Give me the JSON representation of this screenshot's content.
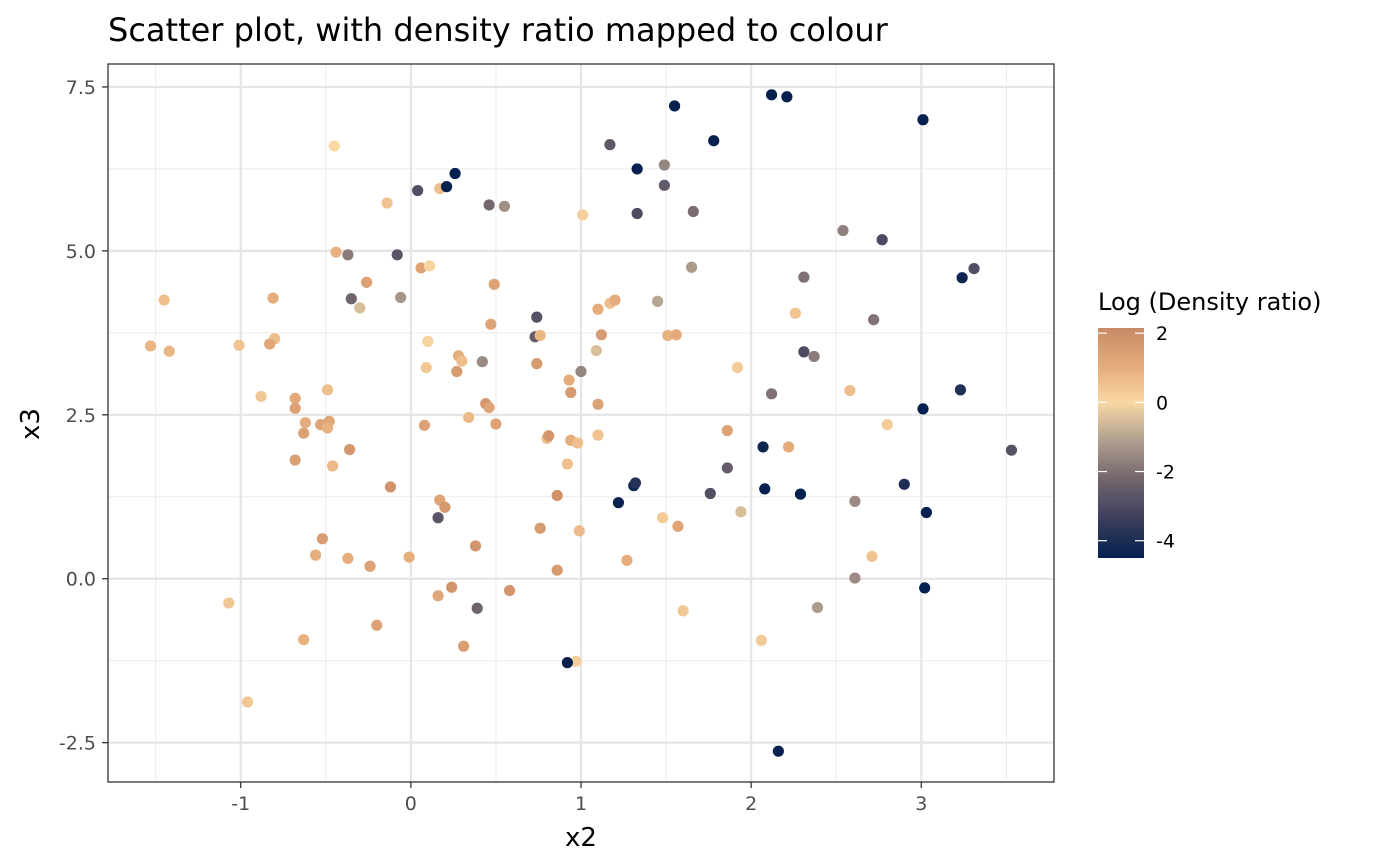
{
  "chart_data": {
    "type": "scatter",
    "title": "Scatter plot, with density ratio mapped to colour",
    "xlabel": "x2",
    "ylabel": "x3",
    "xlim": [
      -1.78,
      3.78
    ],
    "ylim": [
      -3.1,
      7.85
    ],
    "x_ticks": [
      -1,
      0,
      1,
      2,
      3
    ],
    "x_tick_labels": [
      "-1",
      "0",
      "1",
      "2",
      "3"
    ],
    "y_ticks": [
      -2.5,
      0.0,
      2.5,
      5.0,
      7.5
    ],
    "y_tick_labels": [
      "-2.5",
      "0.0",
      "2.5",
      "5.0",
      "7.5"
    ],
    "grid": true,
    "color_scale": {
      "title": "Log (Density ratio)",
      "min": -4.5,
      "max": 2.15,
      "ticks": [
        2,
        0,
        -2,
        -4
      ],
      "tick_labels": [
        "2",
        "0",
        "-2",
        "-4"
      ],
      "stops": [
        {
          "value": -4.5,
          "color": "#04204f"
        },
        {
          "value": -3.4,
          "color": "#3a3d5c"
        },
        {
          "value": -2.2,
          "color": "#74666e"
        },
        {
          "value": -1.0,
          "color": "#b6a591"
        },
        {
          "value": 0.0,
          "color": "#f9d8a4"
        },
        {
          "value": 1.0,
          "color": "#e6ad7c"
        },
        {
          "value": 2.15,
          "color": "#c98a66"
        }
      ],
      "legend_placement": "right"
    },
    "points": [
      {
        "x": -0.45,
        "y": 6.6,
        "c": 0.0
      },
      {
        "x": -1.45,
        "y": 4.25,
        "c": 0.6
      },
      {
        "x": -1.53,
        "y": 3.55,
        "c": 0.8
      },
      {
        "x": -1.42,
        "y": 3.47,
        "c": 0.8
      },
      {
        "x": -1.01,
        "y": 3.56,
        "c": 0.5
      },
      {
        "x": -0.81,
        "y": 4.28,
        "c": 1.0
      },
      {
        "x": -0.8,
        "y": 3.66,
        "c": 0.6
      },
      {
        "x": -0.83,
        "y": 3.58,
        "c": 1.2
      },
      {
        "x": -0.88,
        "y": 2.78,
        "c": 0.4
      },
      {
        "x": -0.68,
        "y": 2.75,
        "c": 1.2
      },
      {
        "x": -0.68,
        "y": 2.6,
        "c": 1.4
      },
      {
        "x": -0.62,
        "y": 2.38,
        "c": 1.0
      },
      {
        "x": -0.63,
        "y": 2.22,
        "c": 1.4
      },
      {
        "x": -0.53,
        "y": 2.35,
        "c": 1.3
      },
      {
        "x": -0.48,
        "y": 2.4,
        "c": 1.2
      },
      {
        "x": -0.49,
        "y": 2.3,
        "c": 0.9
      },
      {
        "x": -0.49,
        "y": 2.88,
        "c": 0.6
      },
      {
        "x": -0.46,
        "y": 1.72,
        "c": 0.7
      },
      {
        "x": -0.68,
        "y": 1.81,
        "c": 1.5
      },
      {
        "x": -0.36,
        "y": 1.97,
        "c": 1.7
      },
      {
        "x": -0.44,
        "y": 4.98,
        "c": 0.9
      },
      {
        "x": -0.37,
        "y": 4.94,
        "c": -1.8
      },
      {
        "x": -0.35,
        "y": 4.27,
        "c": -2.3
      },
      {
        "x": -0.3,
        "y": 4.13,
        "c": -0.5
      },
      {
        "x": -0.26,
        "y": 4.52,
        "c": 1.4
      },
      {
        "x": -0.14,
        "y": 5.73,
        "c": 0.5
      },
      {
        "x": -0.08,
        "y": 4.94,
        "c": -2.7
      },
      {
        "x": -0.06,
        "y": 4.29,
        "c": -1.3
      },
      {
        "x": 0.04,
        "y": 5.92,
        "c": -2.9
      },
      {
        "x": 0.06,
        "y": 4.74,
        "c": 1.3
      },
      {
        "x": 0.11,
        "y": 4.77,
        "c": 0.1
      },
      {
        "x": 0.1,
        "y": 3.62,
        "c": 0.1
      },
      {
        "x": 0.09,
        "y": 3.22,
        "c": 0.4
      },
      {
        "x": 0.08,
        "y": 2.34,
        "c": 1.4
      },
      {
        "x": -0.12,
        "y": 1.4,
        "c": 1.9
      },
      {
        "x": -0.52,
        "y": 0.61,
        "c": 1.5
      },
      {
        "x": -0.56,
        "y": 0.36,
        "c": 1.0
      },
      {
        "x": -0.37,
        "y": 0.31,
        "c": 1.0
      },
      {
        "x": -0.24,
        "y": 0.19,
        "c": 1.4
      },
      {
        "x": -0.01,
        "y": 0.33,
        "c": 1.0
      },
      {
        "x": -0.63,
        "y": -0.93,
        "c": 0.9
      },
      {
        "x": -0.2,
        "y": -0.71,
        "c": 1.4
      },
      {
        "x": -1.07,
        "y": -0.37,
        "c": 0.4
      },
      {
        "x": -0.96,
        "y": -1.88,
        "c": 0.4
      },
      {
        "x": 0.17,
        "y": 5.95,
        "c": 0.6
      },
      {
        "x": 0.21,
        "y": 5.98,
        "c": -4.4
      },
      {
        "x": 0.26,
        "y": 6.18,
        "c": -4.5
      },
      {
        "x": 0.28,
        "y": 3.4,
        "c": 1.0
      },
      {
        "x": 0.3,
        "y": 3.32,
        "c": 0.6
      },
      {
        "x": 0.27,
        "y": 3.16,
        "c": 1.6
      },
      {
        "x": 0.34,
        "y": 2.46,
        "c": 0.7
      },
      {
        "x": 0.16,
        "y": 0.93,
        "c": -2.7
      },
      {
        "x": 0.17,
        "y": 1.2,
        "c": 1.3
      },
      {
        "x": 0.2,
        "y": 1.09,
        "c": 1.7
      },
      {
        "x": 0.16,
        "y": -0.26,
        "c": 1.2
      },
      {
        "x": 0.24,
        "y": -0.13,
        "c": 1.8
      },
      {
        "x": 0.31,
        "y": -1.03,
        "c": 1.5
      },
      {
        "x": 0.39,
        "y": -0.45,
        "c": -2.3
      },
      {
        "x": 0.38,
        "y": 0.5,
        "c": 1.8
      },
      {
        "x": 0.42,
        "y": 3.31,
        "c": -1.5
      },
      {
        "x": 0.44,
        "y": 2.67,
        "c": 1.7
      },
      {
        "x": 0.46,
        "y": 2.61,
        "c": 1.3
      },
      {
        "x": 0.47,
        "y": 3.88,
        "c": 1.3
      },
      {
        "x": 0.49,
        "y": 4.49,
        "c": 1.4
      },
      {
        "x": 0.46,
        "y": 5.7,
        "c": -2.2
      },
      {
        "x": 0.55,
        "y": 5.68,
        "c": -1.4
      },
      {
        "x": 0.5,
        "y": 2.36,
        "c": 1.4
      },
      {
        "x": 0.58,
        "y": -0.18,
        "c": 1.8
      },
      {
        "x": 0.74,
        "y": 3.99,
        "c": -2.8
      },
      {
        "x": 0.73,
        "y": 3.69,
        "c": -2.5
      },
      {
        "x": 0.76,
        "y": 3.71,
        "c": 0.8
      },
      {
        "x": 0.74,
        "y": 3.28,
        "c": 1.6
      },
      {
        "x": 0.8,
        "y": 2.14,
        "c": 0.6
      },
      {
        "x": 0.81,
        "y": 2.18,
        "c": 1.8
      },
      {
        "x": 0.76,
        "y": 0.77,
        "c": 1.6
      },
      {
        "x": 0.86,
        "y": 1.27,
        "c": 1.9
      },
      {
        "x": 0.86,
        "y": 0.13,
        "c": 1.6
      },
      {
        "x": 0.93,
        "y": 3.03,
        "c": 1.0
      },
      {
        "x": 0.94,
        "y": 2.84,
        "c": 1.6
      },
      {
        "x": 0.94,
        "y": 2.11,
        "c": 1.0
      },
      {
        "x": 0.92,
        "y": 1.75,
        "c": 0.6
      },
      {
        "x": 0.97,
        "y": -1.26,
        "c": 0.2
      },
      {
        "x": 0.92,
        "y": -1.28,
        "c": -4.5
      },
      {
        "x": 0.98,
        "y": 2.07,
        "c": 0.6
      },
      {
        "x": 0.99,
        "y": 0.73,
        "c": 0.7
      },
      {
        "x": 1.0,
        "y": 3.16,
        "c": -1.6
      },
      {
        "x": 1.01,
        "y": 5.55,
        "c": 0.2
      },
      {
        "x": 1.09,
        "y": 3.48,
        "c": -0.5
      },
      {
        "x": 1.1,
        "y": 4.11,
        "c": 1.0
      },
      {
        "x": 1.12,
        "y": 3.72,
        "c": 1.6
      },
      {
        "x": 1.17,
        "y": 4.2,
        "c": 0.6
      },
      {
        "x": 1.2,
        "y": 4.25,
        "c": 1.0
      },
      {
        "x": 1.1,
        "y": 2.66,
        "c": 1.4
      },
      {
        "x": 1.1,
        "y": 2.19,
        "c": 0.5
      },
      {
        "x": 1.17,
        "y": 6.62,
        "c": -2.6
      },
      {
        "x": 1.22,
        "y": 1.16,
        "c": -4.4
      },
      {
        "x": 1.27,
        "y": 0.28,
        "c": 1.0
      },
      {
        "x": 1.31,
        "y": 1.42,
        "c": -4.3
      },
      {
        "x": 1.32,
        "y": 1.46,
        "c": -3.8
      },
      {
        "x": 1.33,
        "y": 6.25,
        "c": -4.5
      },
      {
        "x": 1.33,
        "y": 5.57,
        "c": -3.0
      },
      {
        "x": 1.45,
        "y": 4.23,
        "c": -1.0
      },
      {
        "x": 1.49,
        "y": 6.31,
        "c": -1.6
      },
      {
        "x": 1.49,
        "y": 6.0,
        "c": -2.6
      },
      {
        "x": 1.51,
        "y": 3.71,
        "c": 0.9
      },
      {
        "x": 1.56,
        "y": 3.72,
        "c": 1.1
      },
      {
        "x": 1.48,
        "y": 0.93,
        "c": 0.3
      },
      {
        "x": 1.57,
        "y": 0.8,
        "c": 1.3
      },
      {
        "x": 1.6,
        "y": -0.49,
        "c": 0.4
      },
      {
        "x": 1.55,
        "y": 7.21,
        "c": -4.5
      },
      {
        "x": 1.66,
        "y": 5.6,
        "c": -2.1
      },
      {
        "x": 1.65,
        "y": 4.75,
        "c": -1.2
      },
      {
        "x": 1.78,
        "y": 6.68,
        "c": -4.5
      },
      {
        "x": 1.76,
        "y": 1.3,
        "c": -2.9
      },
      {
        "x": 1.86,
        "y": 2.26,
        "c": 1.4
      },
      {
        "x": 1.86,
        "y": 1.69,
        "c": -2.5
      },
      {
        "x": 1.92,
        "y": 3.22,
        "c": 0.3
      },
      {
        "x": 1.94,
        "y": 1.02,
        "c": -0.5
      },
      {
        "x": 2.06,
        "y": -0.94,
        "c": 0.3
      },
      {
        "x": 2.07,
        "y": 2.01,
        "c": -4.3
      },
      {
        "x": 2.08,
        "y": 1.37,
        "c": -4.5
      },
      {
        "x": 2.12,
        "y": 7.38,
        "c": -4.5
      },
      {
        "x": 2.21,
        "y": 7.35,
        "c": -4.5
      },
      {
        "x": 2.12,
        "y": 2.82,
        "c": -2.0
      },
      {
        "x": 2.22,
        "y": 2.01,
        "c": 1.1
      },
      {
        "x": 2.26,
        "y": 4.05,
        "c": 0.5
      },
      {
        "x": 2.29,
        "y": 1.29,
        "c": -4.5
      },
      {
        "x": 2.31,
        "y": 4.6,
        "c": -2.0
      },
      {
        "x": 2.31,
        "y": 3.46,
        "c": -3.0
      },
      {
        "x": 2.37,
        "y": 3.39,
        "c": -1.8
      },
      {
        "x": 2.16,
        "y": -2.63,
        "c": -4.5
      },
      {
        "x": 2.39,
        "y": -0.44,
        "c": -1.2
      },
      {
        "x": 2.54,
        "y": 5.31,
        "c": -1.7
      },
      {
        "x": 2.58,
        "y": 2.87,
        "c": 0.6
      },
      {
        "x": 2.61,
        "y": 1.18,
        "c": -1.5
      },
      {
        "x": 2.61,
        "y": 0.01,
        "c": -1.5
      },
      {
        "x": 2.71,
        "y": 0.34,
        "c": 0.5
      },
      {
        "x": 2.72,
        "y": 3.95,
        "c": -2.0
      },
      {
        "x": 2.77,
        "y": 5.17,
        "c": -3.0
      },
      {
        "x": 2.8,
        "y": 2.35,
        "c": 0.3
      },
      {
        "x": 2.9,
        "y": 1.44,
        "c": -4.0
      },
      {
        "x": 3.01,
        "y": 7.0,
        "c": -4.5
      },
      {
        "x": 3.01,
        "y": 2.59,
        "c": -4.5
      },
      {
        "x": 3.02,
        "y": -0.14,
        "c": -4.5
      },
      {
        "x": 3.03,
        "y": 1.01,
        "c": -4.5
      },
      {
        "x": 3.23,
        "y": 2.88,
        "c": -3.9
      },
      {
        "x": 3.24,
        "y": 4.59,
        "c": -4.3
      },
      {
        "x": 3.31,
        "y": 4.73,
        "c": -2.9
      },
      {
        "x": 3.53,
        "y": 1.96,
        "c": -2.8
      }
    ]
  }
}
